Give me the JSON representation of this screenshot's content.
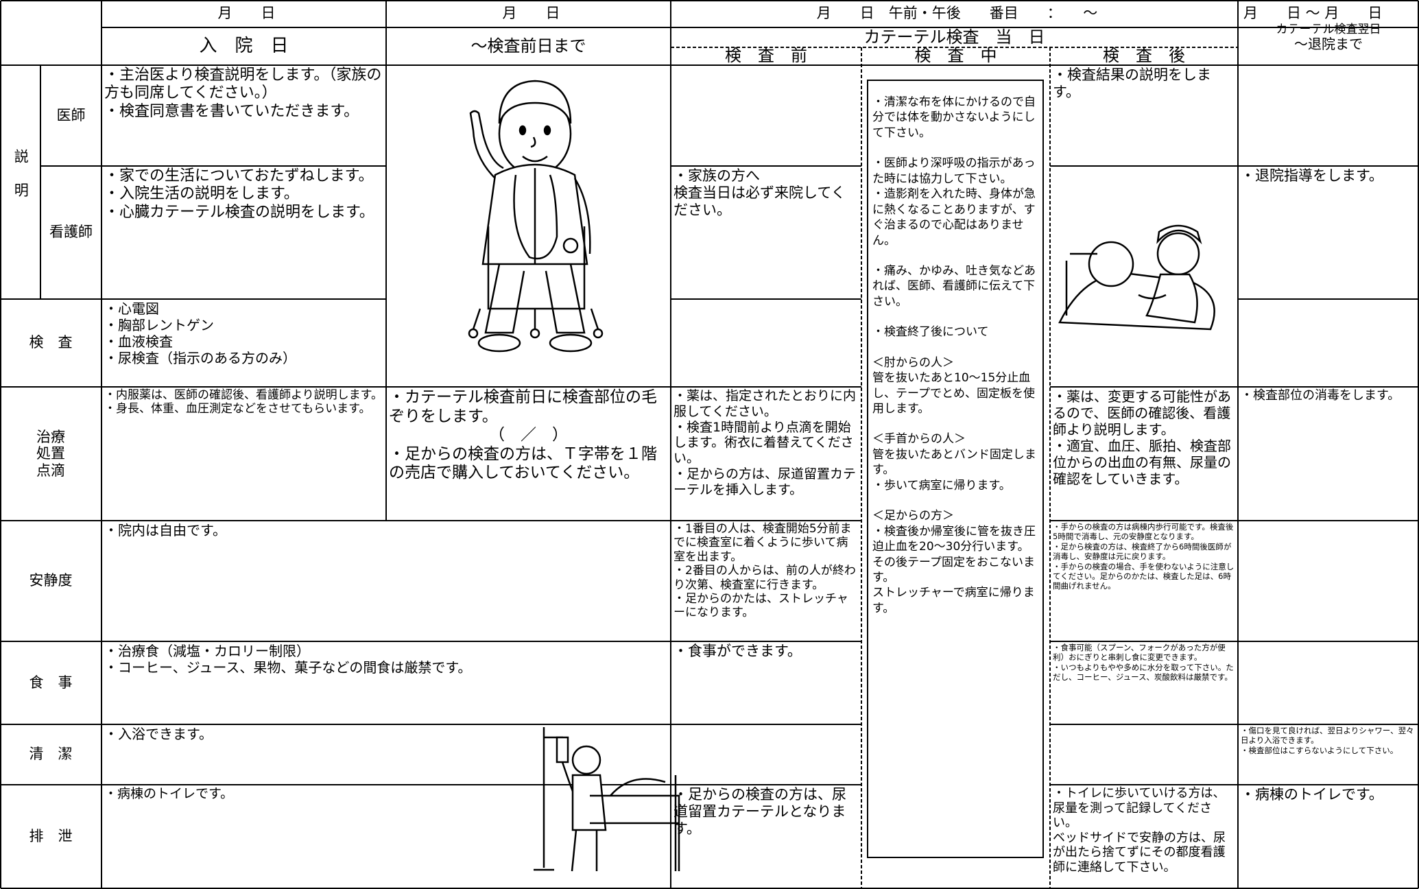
{
  "header": {
    "dates": [
      "月　　日",
      "月　　日",
      "月　　日　午前・午後　　番目　　：　　～",
      "月　　日 ～ 月　　日"
    ],
    "phases": {
      "admission": "入　院　日",
      "pre_day": "～検査前日まで",
      "exam_day": "カテーテル検査　当　日",
      "discharge": [
        "カテーテル検査翌日",
        "～退院まで"
      ]
    },
    "sub_phases": {
      "before": "検　査　前",
      "during": "検　査　中",
      "after": "検　査　後"
    }
  },
  "group_label": "説明",
  "rows": [
    {
      "label": "医師",
      "cells": {
        "admission": [
          "・主治医より検査説明をします。（家族の方も同席してください。）",
          "・検査同意書を書いていただきます。"
        ],
        "after": [
          "・検査結果の説明をします。"
        ]
      }
    },
    {
      "label": "看護師",
      "cells": {
        "admission": [
          "・家での生活についておたずねします。",
          "・入院生活の説明をします。",
          "・心臓カテーテル検査の説明をします。"
        ],
        "before": [
          "・家族の方へ",
          "検査当日は必ず来院してください。"
        ],
        "discharge": [
          "・退院指導をします。"
        ]
      }
    },
    {
      "label": "検　査",
      "cells": {
        "admission": [
          "・心電図",
          "・胸部レントゲン",
          "・血液検査",
          "・尿検査（指示のある方のみ）"
        ]
      }
    },
    {
      "label": "治療\n処置\n点滴",
      "cells": {
        "admission": [
          "・内服薬は、医師の確認後、看護師より説明します。",
          "・身長、体重、血圧測定などをさせてもらいます。"
        ],
        "pre_day": [
          "・カテーテル検査前日に検査部位の毛ぞりをします。",
          "（　／　）",
          "・足からの検査の方は、Ｔ字帯を１階の売店で購入しておいてください。"
        ],
        "before": [
          "・薬は、指定されたとおりに内服してください。",
          "・検査1時間前より点滴を開始します。術衣に着替えてください。",
          "・足からの方は、尿道留置カテーテルを挿入します。"
        ],
        "after": [
          "・薬は、変更する可能性があるので、医師の確認後、看護師より説明します。",
          "・適宜、血圧、脈拍、検査部位からの出血の有無、尿量の確認をしていきます。"
        ],
        "discharge": [
          "・検査部位の消毒をします。"
        ]
      }
    },
    {
      "label": "安静度",
      "cells": {
        "admission": [
          "・院内は自由です。"
        ],
        "before": [
          "・1番目の人は、検査開始5分前までに検査室に着くように歩いて病室を出ます。",
          "・2番目の人からは、前の人が終わり次第、検査室に行きます。",
          "・足からのかたは、ストレッチャーになります。"
        ],
        "after": [
          "・手からの検査の方は病棟内歩行可能です。検査後5時間で消毒し、元の安静度となります。",
          "・足から検査の方は、検査終了から6時間後医師が消毒し、安静度は元に戻ります。",
          "・手からの検査の場合、手を使わないように注意してください。足からのかたは、検査した足は、6時間曲げれません。"
        ]
      }
    },
    {
      "label": "食　事",
      "cells": {
        "admission": [
          "・治療食（減塩・カロリー制限）",
          "・コーヒー、ジュース、果物、菓子などの間食は厳禁です。"
        ],
        "before": [
          "・食事ができます。"
        ],
        "after": [
          "・食事可能（スプーン、フォークがあった方が便利）おにぎりと串刺し食に変更できます。",
          "・いつもよりもやや多めに水分を取って下さい。ただし、コーヒー、ジュース、炭酸飲料は厳禁です。"
        ]
      }
    },
    {
      "label": "清　潔",
      "cells": {
        "admission": [
          "・入浴できます。"
        ],
        "discharge": [
          "・傷口を見て良ければ、翌日よりシャワー、翌々日より入浴できます。",
          "・検査部位はこすらないようにして下さい。"
        ]
      }
    },
    {
      "label": "排　泄",
      "cells": {
        "admission": [
          "・病棟のトイレです。"
        ],
        "before": [
          "・足からの検査の方は、尿道留置カテーテルとなります。"
        ],
        "after": [
          "・トイレに歩いていける方は、尿量を測って記録してください。",
          "ベッドサイドで安静の方は、尿が出たら捨てずにその都度看護師に連絡して下さい。"
        ],
        "discharge": [
          "・病棟のトイレです。"
        ]
      }
    }
  ],
  "during_exam": [
    "・清潔な布を体にかけるので自分では体を動かさないようにして下さい。",
    "・医師より深呼吸の指示があった時には協力して下さい。",
    "・造影剤を入れた時、身体が急に熱くなることありますが、すぐ治まるので心配はありません。",
    "・痛み、かゆみ、吐き気などあれば、医師、看護師に伝えて下さい。",
    "・検査終了後について",
    "＜肘からの人＞",
    "管を抜いたあと10～15分止血し、テープでとめ、固定板を使用します。",
    "＜手首からの人＞",
    "管を抜いたあとバンド固定します。",
    "・歩いて病室に帰ります。",
    "＜足からの方＞",
    "・検査後か帰室後に管を抜き圧迫止血を20～30分行います。その後テープ固定をおこないます。",
    "ストレッチャーで病室に帰ります。"
  ]
}
